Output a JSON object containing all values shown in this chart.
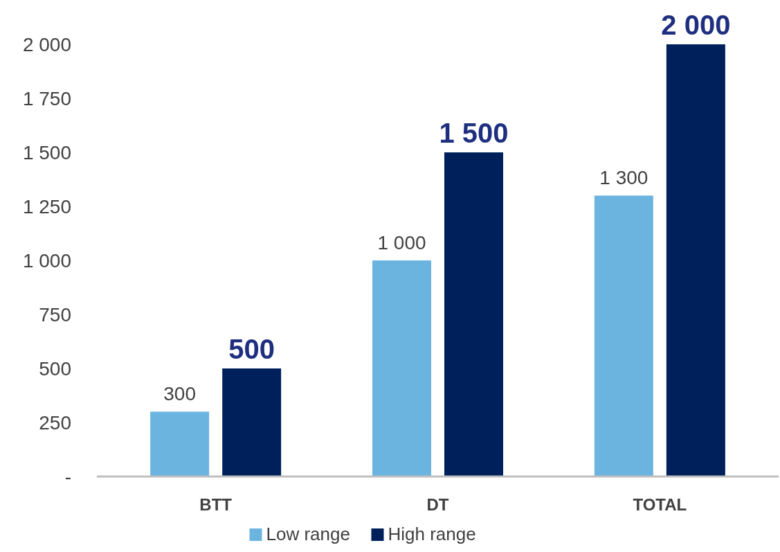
{
  "chart_data": {
    "type": "bar",
    "categories": [
      "BTT",
      "DT",
      "TOTAL"
    ],
    "series": [
      {
        "name": "Low range",
        "color": "#6cb4e0",
        "values": [
          300,
          1000,
          1300
        ],
        "value_labels": [
          "300",
          "1 000",
          "1 300"
        ]
      },
      {
        "name": "High range",
        "color": "#00205b",
        "values": [
          500,
          1500,
          2000
        ],
        "value_labels": [
          "500",
          "1 500",
          "2 000"
        ]
      }
    ],
    "ylim": [
      0,
      2000
    ],
    "yticks": [
      {
        "value": 0,
        "label": "-"
      },
      250,
      500,
      750,
      {
        "value": 1000,
        "label": "1 000"
      },
      {
        "value": 1250,
        "label": "1 250"
      },
      {
        "value": 1500,
        "label": "1 500"
      },
      {
        "value": 1750,
        "label": "1 750"
      },
      {
        "value": 2000,
        "label": "2 000"
      }
    ],
    "grid": false,
    "legend": "bottom"
  }
}
